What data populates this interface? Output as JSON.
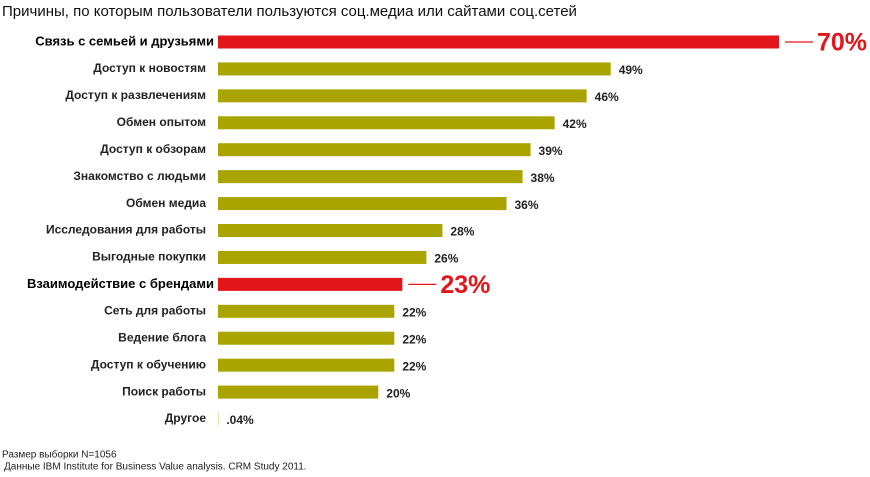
{
  "chart_data": {
    "type": "bar",
    "orientation": "horizontal",
    "title": "Причины, по которым пользователи пользуются соц.медиа или сайтами соц.сетей",
    "categories": [
      "Связь с семьей и друзьями",
      "Доступ к новостям",
      "Доступ к развлечениям",
      "Обмен опытом",
      "Доступ к обзорам",
      "Знакомство с людьми",
      "Обмен медиа",
      "Исследования для работы",
      "Выгодные покупки",
      "Взаимодействие с брендами",
      "Сеть для работы",
      "Ведение блога",
      "Доступ к обучению",
      "Поиск работы",
      "Другое"
    ],
    "values": [
      70,
      49,
      46,
      42,
      39,
      38,
      36,
      28,
      26,
      23,
      22,
      22,
      22,
      20,
      0.04
    ],
    "value_labels": [
      "70%",
      "49%",
      "46%",
      "42%",
      "39%",
      "38%",
      "36%",
      "28%",
      "26%",
      "23%",
      "22%",
      "22%",
      "22%",
      "20%",
      ".04%"
    ],
    "color": "#a9a400",
    "colors": [
      "#e2151b",
      "#a9a400",
      "#a9a400",
      "#a9a400",
      "#a9a400",
      "#a9a400",
      "#a9a400",
      "#a9a400",
      "#a9a400",
      "#e2151b",
      "#a9a400",
      "#a9a400",
      "#a9a400",
      "#a9a400",
      "#a9a400"
    ],
    "notes": [
      "Размер выборки N=1056",
      "Данные IBM Institute for Business Value analysis. CRM Study 2011."
    ]
  }
}
